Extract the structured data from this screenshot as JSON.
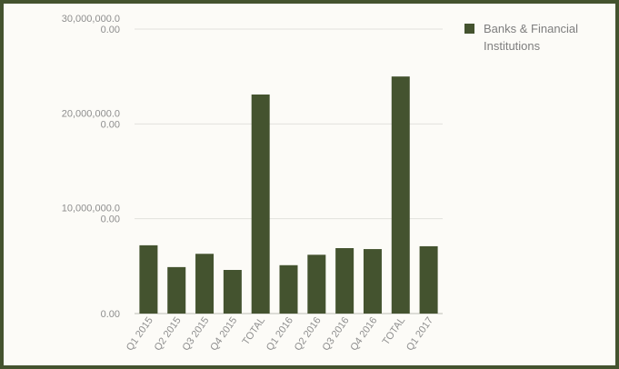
{
  "colors": {
    "bar": "#44532f",
    "border": "#44532f",
    "grid": "#e2e2dc",
    "background": "#fcfbf7"
  },
  "chart_data": {
    "type": "bar",
    "categories": [
      "Q1 2015",
      "Q2 2015",
      "Q3 2015",
      "Q4 2015",
      "TOTAL",
      "Q1 2016",
      "Q2 2016",
      "Q3 2016",
      "Q4 2016",
      "TOTAL",
      "Q1 2017"
    ],
    "series": [
      {
        "name": "Banks & Financial Institutions",
        "values": [
          7200000,
          4900000,
          6300000,
          4600000,
          23100000,
          5100000,
          6200000,
          6900000,
          6800000,
          25000000,
          7100000
        ]
      }
    ],
    "ylim": [
      0,
      30000000
    ],
    "yticks": [
      {
        "value": 0,
        "lines": [
          "0.00"
        ]
      },
      {
        "value": 10000000,
        "lines": [
          "10,000,000.0",
          "0.00"
        ]
      },
      {
        "value": 20000000,
        "lines": [
          "20,000,000.0",
          "0.00"
        ]
      },
      {
        "value": 30000000,
        "lines": [
          "30,000,000.0",
          "0.00"
        ]
      }
    ],
    "grid": true,
    "legend_position": "top-right"
  }
}
